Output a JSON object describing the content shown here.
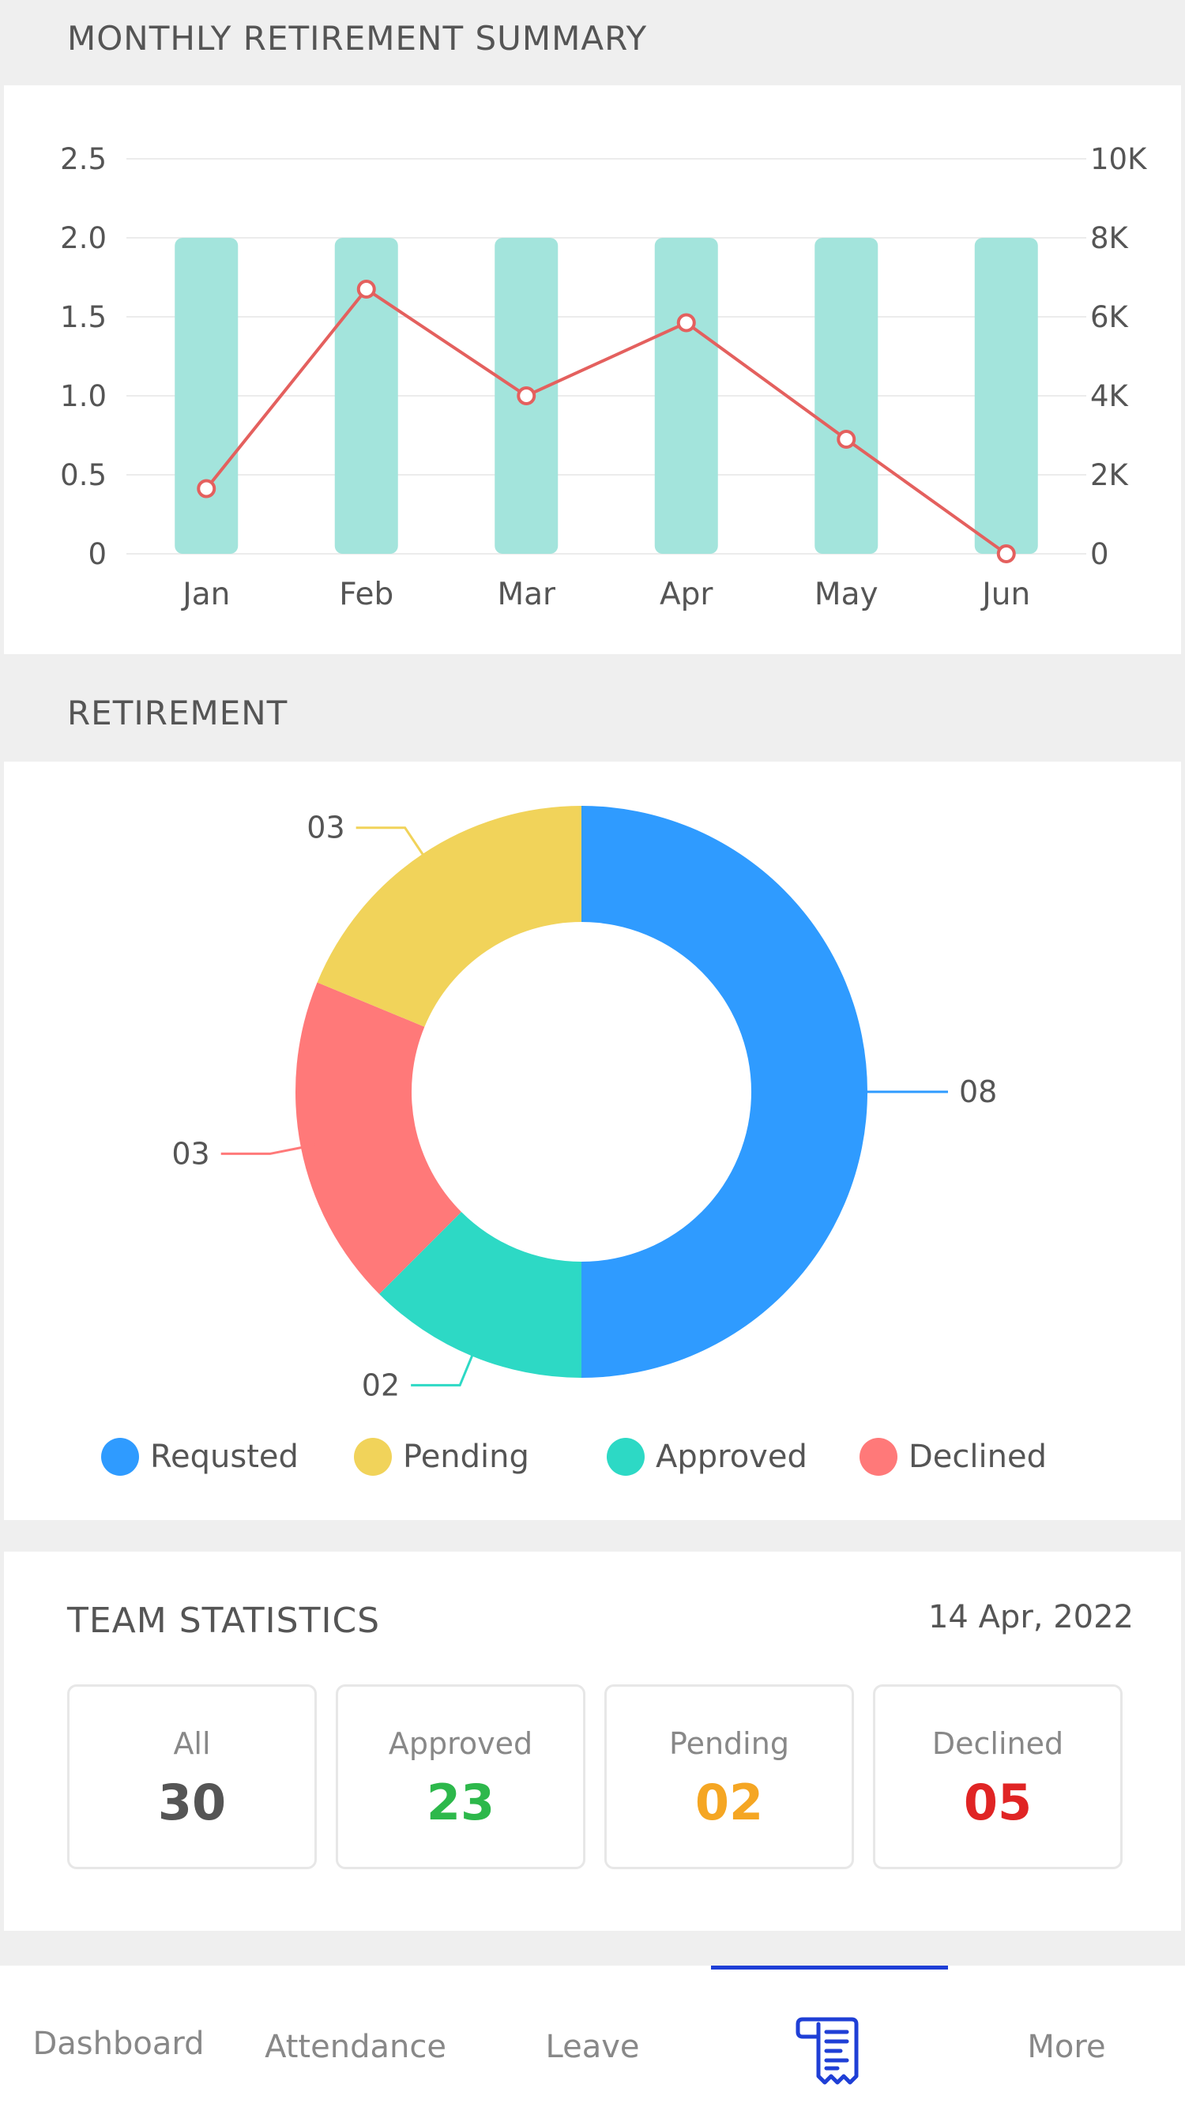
{
  "summary": {
    "title": "MONTHLY RETIREMENT SUMMARY"
  },
  "chart_data": [
    {
      "type": "bar",
      "categories": [
        "Jan",
        "Feb",
        "Mar",
        "Apr",
        "May",
        "Jun"
      ],
      "series": [
        {
          "type": "bar",
          "axis": "left",
          "values": [
            2,
            2,
            2,
            2,
            2,
            2
          ],
          "color": "#a3e4dc"
        },
        {
          "type": "line",
          "axis": "right",
          "values": [
            1650,
            6700,
            4000,
            5850,
            2900,
            0
          ],
          "color": "#e4605e"
        }
      ],
      "left_axis": {
        "ticks": [
          "0",
          "0.5",
          "1.0",
          "1.5",
          "2.0",
          "2.5"
        ],
        "range": [
          0,
          2.5
        ]
      },
      "right_axis": {
        "ticks": [
          "0",
          "2K",
          "4K",
          "6K",
          "8K",
          "10K"
        ],
        "range": [
          0,
          10000
        ]
      },
      "grid": true
    },
    {
      "type": "pie",
      "variant": "donut",
      "slices": [
        {
          "name": "Requsted",
          "value": 8,
          "label": "08",
          "color": "#2f9bff"
        },
        {
          "name": "Approved",
          "value": 2,
          "label": "02",
          "color": "#2dd9c5"
        },
        {
          "name": "Declined",
          "value": 3,
          "label": "03",
          "color": "#ff7979"
        },
        {
          "name": "Pending",
          "value": 3,
          "label": "03",
          "color": "#f1d35a"
        }
      ]
    }
  ],
  "retirement": {
    "title": "RETIREMENT",
    "legend": [
      {
        "label": "Requsted",
        "color": "#2f9bff"
      },
      {
        "label": "Pending",
        "color": "#f1d35a"
      },
      {
        "label": "Approved",
        "color": "#2dd9c5"
      },
      {
        "label": "Declined",
        "color": "#ff7979"
      }
    ]
  },
  "team": {
    "title": "TEAM STATISTICS",
    "date": "14 Apr, 2022",
    "stats": [
      {
        "label": "All",
        "value": "30",
        "color": "#555555"
      },
      {
        "label": "Approved",
        "value": "23",
        "color": "#2db84b"
      },
      {
        "label": "Pending",
        "value": "02",
        "color": "#f5a623"
      },
      {
        "label": "Declined",
        "value": "05",
        "color": "#e02424"
      }
    ]
  },
  "nav": {
    "items": [
      {
        "label": "Dashboard"
      },
      {
        "label": "Attendance"
      },
      {
        "label": "Leave"
      },
      {
        "label": "",
        "icon": "receipt-icon",
        "active": true
      },
      {
        "label": "More"
      }
    ],
    "accent": "#1f3fd6"
  }
}
